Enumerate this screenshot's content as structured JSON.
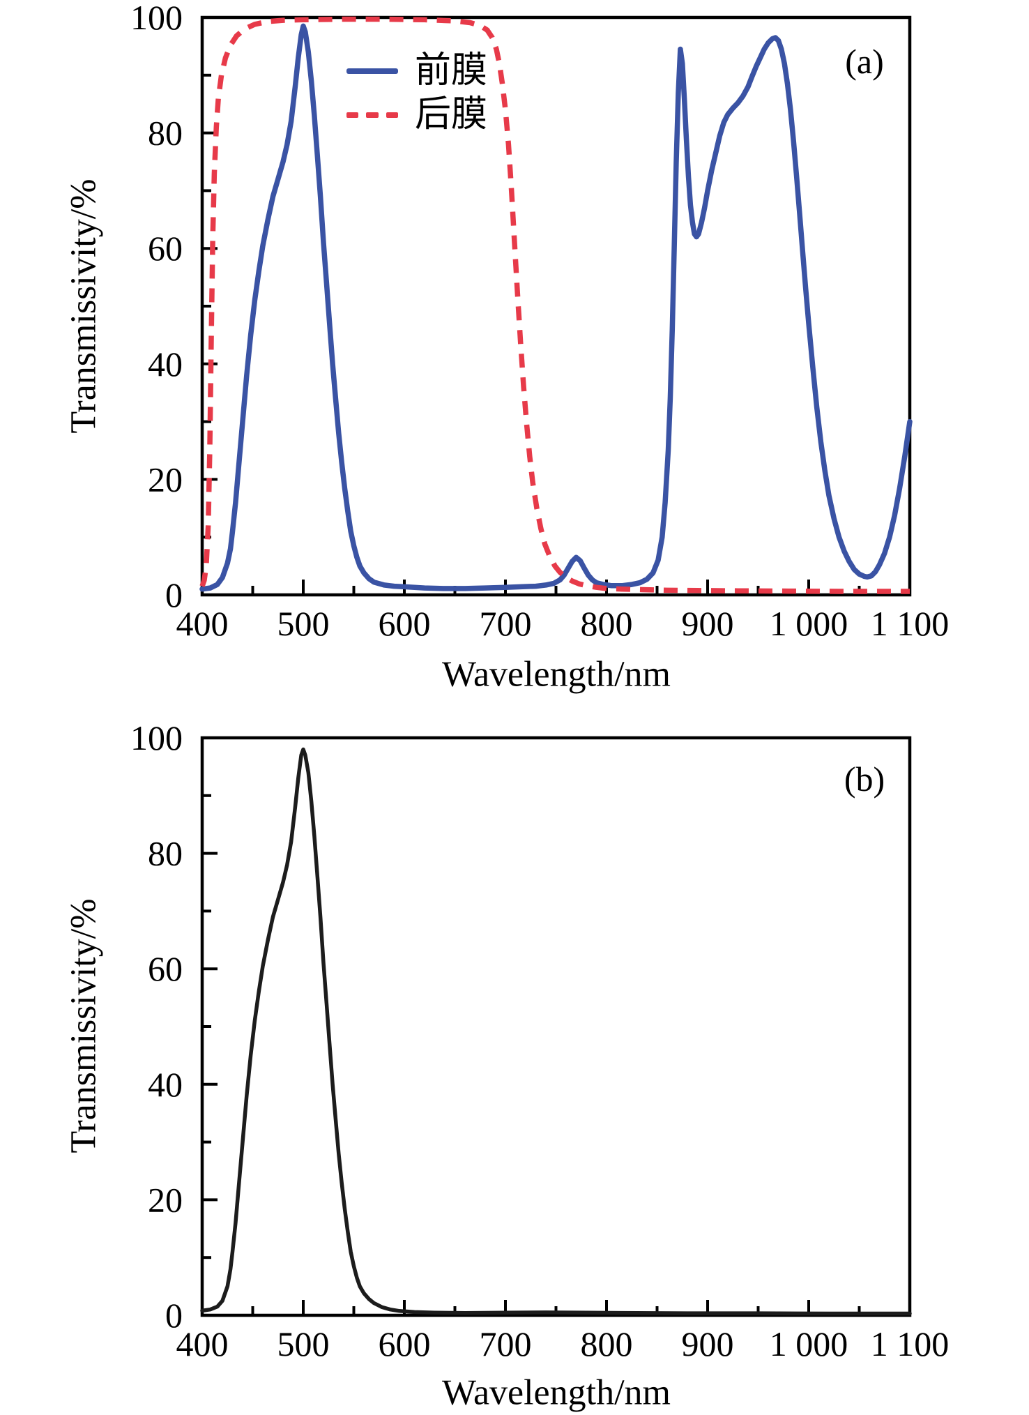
{
  "figure": {
    "background": "#ffffff",
    "frame_color": "#000000",
    "text_color": "#000000"
  },
  "chart_data": [
    {
      "type": "line",
      "panel_label": "(a)",
      "xlabel": "Wavelength/nm",
      "ylabel": "Transmissivity/%",
      "xlim": [
        400,
        1100
      ],
      "ylim": [
        0,
        100
      ],
      "grid": false,
      "x_major_ticks": [
        400,
        500,
        600,
        700,
        800,
        900,
        1000,
        1100
      ],
      "x_tick_labels": [
        "400",
        "500",
        "600",
        "700",
        "800",
        "900",
        "1 000",
        "1 100"
      ],
      "x_minor_ticks": [
        450,
        550,
        650,
        750,
        850,
        950,
        1050
      ],
      "y_major_ticks": [
        0,
        20,
        40,
        60,
        80,
        100
      ],
      "y_tick_labels": [
        "0",
        "20",
        "40",
        "60",
        "80",
        "100"
      ],
      "y_minor_ticks": [
        10,
        30,
        50,
        70,
        90
      ],
      "legend": {
        "position": "upper-left-inside"
      },
      "series": [
        {
          "key": "front-film",
          "name": "前膜",
          "color": "#3a53a4",
          "line_style": "solid",
          "line_width": 7.5,
          "x": [
            400,
            408,
            415,
            420,
            425,
            428,
            430,
            433,
            436,
            440,
            444,
            448,
            452,
            456,
            460,
            465,
            470,
            475,
            480,
            484,
            488,
            492,
            495,
            498,
            500,
            502,
            505,
            508,
            511,
            514,
            517,
            520,
            523,
            526,
            529,
            532,
            535,
            538,
            541,
            544,
            547,
            550,
            553,
            556,
            560,
            565,
            570,
            580,
            590,
            600,
            620,
            640,
            660,
            680,
            700,
            715,
            730,
            740,
            748,
            754,
            758,
            762,
            766,
            770,
            774,
            778,
            782,
            786,
            790,
            797,
            805,
            815,
            825,
            833,
            840,
            846,
            851,
            855,
            858,
            861,
            863,
            865,
            867,
            869,
            871,
            873,
            875,
            877,
            879,
            881,
            883,
            885,
            887,
            889,
            891,
            894,
            897,
            900,
            904,
            908,
            912,
            916,
            920,
            925,
            930,
            935,
            940,
            944,
            948,
            952,
            956,
            960,
            964,
            967,
            970,
            973,
            976,
            979,
            982,
            985,
            988,
            991,
            994,
            997,
            1000,
            1004,
            1008,
            1012,
            1016,
            1020,
            1025,
            1030,
            1035,
            1040,
            1045,
            1050,
            1055,
            1058,
            1062,
            1066,
            1070,
            1075,
            1080,
            1085,
            1090,
            1095,
            1100
          ],
          "y": [
            1,
            1.2,
            1.8,
            3,
            5.5,
            8,
            11,
            16,
            22,
            30,
            38,
            45,
            51,
            56,
            60.5,
            65,
            69,
            72,
            75,
            78,
            82,
            88,
            93,
            97,
            98.5,
            97.5,
            94,
            89,
            83,
            76,
            69,
            61,
            54,
            47,
            40,
            34,
            28,
            23,
            18.5,
            14.5,
            11,
            8.5,
            6.5,
            5,
            3.8,
            2.8,
            2.2,
            1.7,
            1.5,
            1.4,
            1.2,
            1.1,
            1.1,
            1.2,
            1.3,
            1.4,
            1.5,
            1.7,
            2,
            2.6,
            3.4,
            4.6,
            5.8,
            6.5,
            5.9,
            4.6,
            3.4,
            2.6,
            2.1,
            1.8,
            1.6,
            1.6,
            1.8,
            2.1,
            2.7,
            3.8,
            6,
            10,
            16,
            25,
            34,
            46,
            60,
            75,
            87,
            94.5,
            92,
            86,
            79,
            72.5,
            67.5,
            64.5,
            62.5,
            62,
            62.5,
            64.5,
            67,
            70,
            73.5,
            76.5,
            79.5,
            81.8,
            83.2,
            84.3,
            85.2,
            86.4,
            88,
            89.8,
            91.5,
            93,
            94.5,
            95.6,
            96.3,
            96.5,
            96,
            94.5,
            92,
            88.5,
            84,
            78.5,
            72.5,
            66,
            59.5,
            53,
            47,
            39.5,
            32.5,
            26.5,
            21.5,
            17.2,
            13.2,
            10,
            7.6,
            5.8,
            4.4,
            3.6,
            3.2,
            3.1,
            3.3,
            4,
            5.2,
            7.2,
            10,
            13.8,
            18.5,
            24,
            30
          ]
        },
        {
          "key": "back-film",
          "name": "后膜",
          "color": "#e73a49",
          "line_style": "dashed",
          "line_width": 7.5,
          "x": [
            400,
            402,
            404,
            406,
            407.5,
            409,
            410.5,
            412,
            414,
            416,
            419,
            423,
            428,
            434,
            442,
            452,
            465,
            480,
            500,
            540,
            580,
            620,
            650,
            665,
            675,
            682,
            687,
            691,
            694,
            697,
            700,
            703,
            706,
            709,
            712,
            715,
            718,
            721,
            724,
            727,
            731,
            735,
            739,
            744,
            749,
            754,
            760,
            766,
            773,
            780,
            790,
            800,
            815,
            835,
            860,
            890,
            930,
            980,
            1030,
            1100
          ],
          "y": [
            1.5,
            2.5,
            5,
            12,
            25,
            45,
            62,
            73,
            81,
            86,
            90,
            93,
            95.2,
            96.8,
            98,
            98.8,
            99.3,
            99.5,
            99.6,
            99.7,
            99.7,
            99.6,
            99.4,
            99.1,
            98.6,
            97.8,
            96.5,
            94.5,
            92,
            88.5,
            84,
            78,
            70,
            61,
            52,
            43.5,
            36,
            29.5,
            24,
            19.5,
            15,
            11.5,
            8.8,
            6.6,
            5,
            3.9,
            3,
            2.4,
            1.9,
            1.6,
            1.3,
            1.1,
            1,
            0.9,
            0.8,
            0.75,
            0.7,
            0.65,
            0.6,
            0.6
          ]
        }
      ]
    },
    {
      "type": "line",
      "panel_label": "(b)",
      "xlabel": "Wavelength/nm",
      "ylabel": "Transmissivity/%",
      "xlim": [
        400,
        1100
      ],
      "ylim": [
        0,
        100
      ],
      "grid": false,
      "x_major_ticks": [
        400,
        500,
        600,
        700,
        800,
        900,
        1000,
        1100
      ],
      "x_tick_labels": [
        "400",
        "500",
        "600",
        "700",
        "800",
        "900",
        "1 000",
        "1 100"
      ],
      "x_minor_ticks": [
        450,
        550,
        650,
        750,
        850,
        950,
        1050
      ],
      "y_major_ticks": [
        0,
        20,
        40,
        60,
        80,
        100
      ],
      "y_tick_labels": [
        "0",
        "20",
        "40",
        "60",
        "80",
        "100"
      ],
      "y_minor_ticks": [
        10,
        30,
        50,
        70,
        90
      ],
      "series": [
        {
          "key": "single-film",
          "name": "",
          "color": "#1c1c1c",
          "line_style": "solid",
          "line_width": 5.5,
          "x": [
            400,
            408,
            415,
            420,
            425,
            428,
            430,
            433,
            436,
            440,
            444,
            448,
            452,
            456,
            460,
            465,
            470,
            475,
            480,
            484,
            488,
            492,
            495,
            498,
            500,
            502,
            505,
            508,
            511,
            514,
            517,
            520,
            523,
            526,
            529,
            532,
            535,
            538,
            541,
            544,
            547,
            550,
            553,
            556,
            560,
            565,
            570,
            578,
            586,
            595,
            610,
            630,
            660,
            700,
            740,
            780,
            830,
            880,
            950,
            1020,
            1100
          ],
          "y": [
            0.8,
            1,
            1.5,
            2.5,
            5,
            8,
            11,
            16,
            22,
            30,
            38,
            45,
            51,
            56,
            60.5,
            65,
            69,
            72,
            75,
            78,
            82,
            88,
            93,
            97,
            98,
            97,
            94,
            89,
            83,
            76,
            69,
            61,
            54,
            47,
            40,
            34,
            28,
            23,
            18.5,
            14.5,
            11,
            8.5,
            6.5,
            5,
            3.8,
            2.8,
            2.1,
            1.4,
            1,
            0.75,
            0.55,
            0.45,
            0.4,
            0.45,
            0.5,
            0.45,
            0.4,
            0.35,
            0.35,
            0.3,
            0.3
          ]
        }
      ]
    }
  ]
}
